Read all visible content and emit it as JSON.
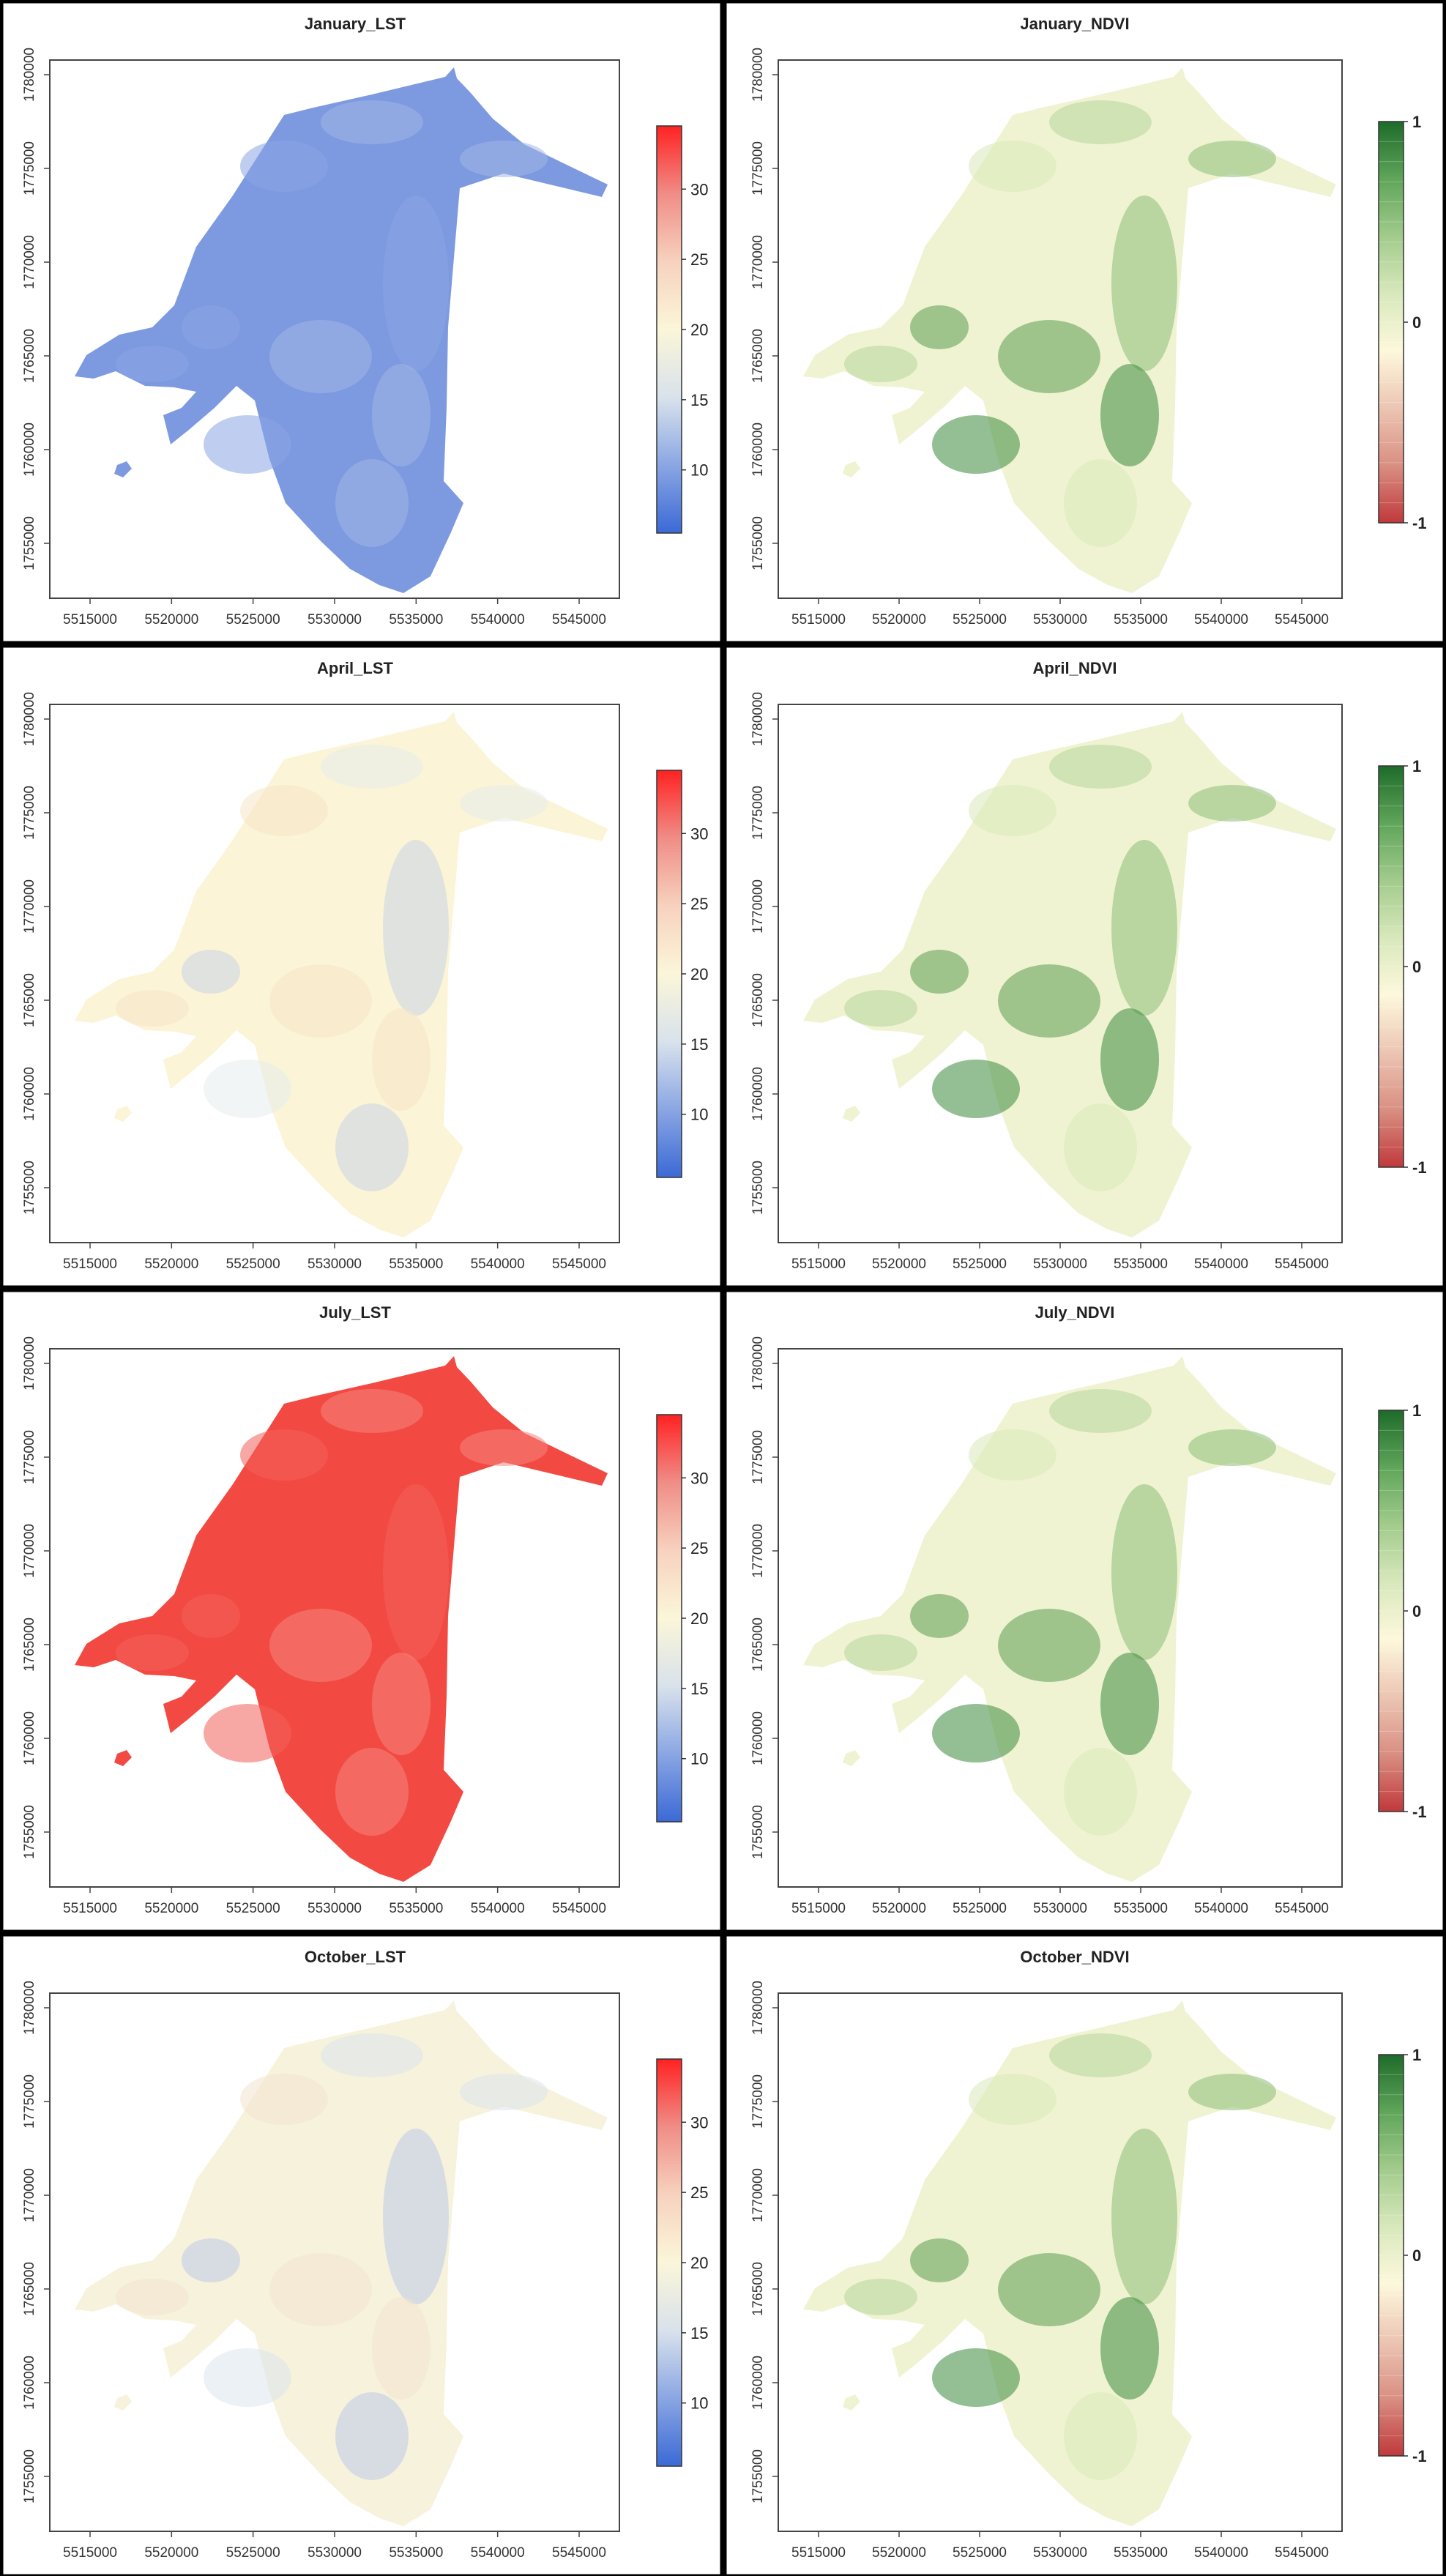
{
  "colors": {
    "lst_ramp": [
      "#3b6ad6",
      "#8aa6e3",
      "#d9e2ec",
      "#fbf6d9",
      "#f7d2be",
      "#f08d86",
      "#ff2222"
    ],
    "ndvi_ramp": [
      "#c0393b",
      "#d98f82",
      "#ecc5b3",
      "#fdf8dc",
      "#d8e8bc",
      "#a2cb8c",
      "#5fa55a",
      "#1e6b2a"
    ],
    "ndvi_map": [
      "#f0f3d2",
      "#d9e9b9",
      "#b6d59a",
      "#8cbd78",
      "#5b9d52",
      "#3d8a3d"
    ],
    "lst_january": [
      "#7d9ae0",
      "#8aa5e3",
      "#a3b7e5"
    ],
    "lst_april": [
      "#fbf4d6",
      "#f7e5c8",
      "#e7ecec",
      "#c9d4e8"
    ],
    "lst_july": [
      "#f24a43",
      "#f3605a",
      "#f6857d"
    ],
    "lst_october": [
      "#f7f2dc",
      "#f3e3cf",
      "#dde5ec",
      "#bccbe7"
    ]
  },
  "axes": {
    "x_ticks": [
      "5515000",
      "5520000",
      "5525000",
      "5530000",
      "5535000",
      "5540000",
      "5545000"
    ],
    "y_ticks": [
      "1755000",
      "1760000",
      "1765000",
      "1770000",
      "1775000",
      "1780000"
    ]
  },
  "legends": {
    "lst": {
      "labels": [
        "10",
        "15",
        "20",
        "25",
        "30"
      ],
      "values": [
        10,
        15,
        20,
        25,
        30
      ],
      "min": 5.5,
      "max": 34.5
    },
    "ndvi": {
      "labels": [
        "1",
        "0",
        "-1"
      ],
      "values": [
        1,
        0,
        -1
      ],
      "min": -1,
      "max": 1
    }
  },
  "panels": [
    {
      "title": "January_LST",
      "kind": "lst",
      "fill": "lst_january"
    },
    {
      "title": "January_NDVI",
      "kind": "ndvi",
      "fill": "ndvi_map"
    },
    {
      "title": "April_LST",
      "kind": "lst",
      "fill": "lst_april"
    },
    {
      "title": "April_NDVI",
      "kind": "ndvi",
      "fill": "ndvi_map"
    },
    {
      "title": "July_LST",
      "kind": "lst",
      "fill": "lst_july"
    },
    {
      "title": "July_NDVI",
      "kind": "ndvi",
      "fill": "ndvi_map"
    },
    {
      "title": "October_LST",
      "kind": "lst",
      "fill": "lst_october"
    },
    {
      "title": "October_NDVI",
      "kind": "ndvi",
      "fill": "ndvi_map"
    }
  ]
}
